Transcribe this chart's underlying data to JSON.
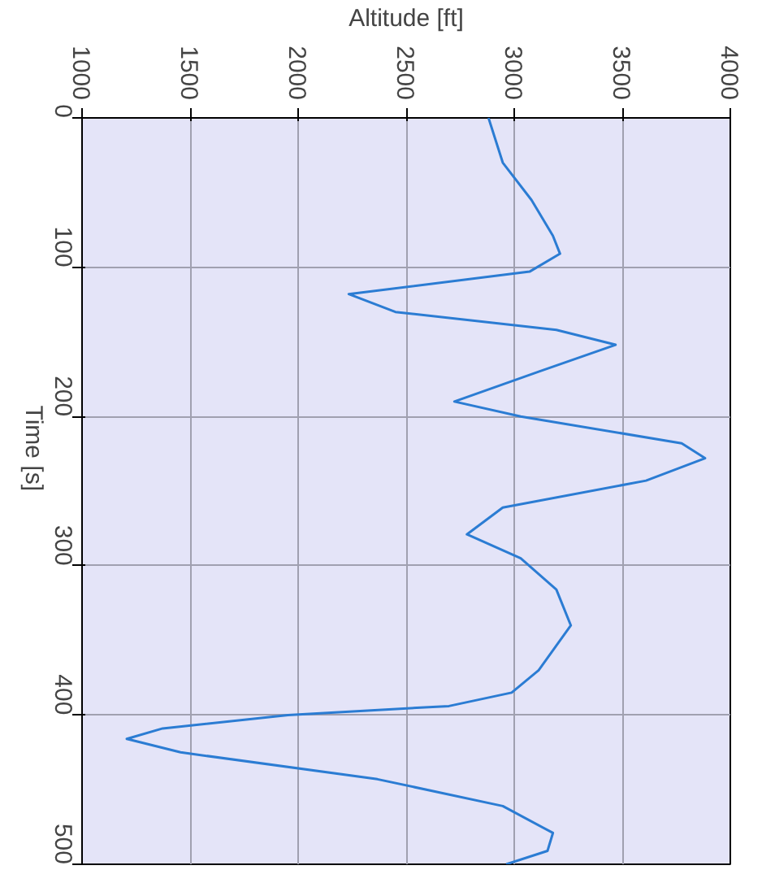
{
  "chart_data": {
    "type": "line",
    "xlabel": "Altitude [ft]",
    "ylabel": "Time [s]",
    "x": [
      2881,
      2947,
      3080,
      3179,
      3212,
      3071,
      2234,
      2450,
      3195,
      3469,
      3113,
      2723,
      3030,
      3775,
      3883,
      3610,
      2947,
      2781,
      3030,
      3195,
      3262,
      3113,
      2988,
      2698,
      1953,
      1373,
      1207,
      1456,
      2367,
      2947,
      3179,
      3154,
      2963
    ],
    "series": [
      {
        "color": "#2b7cd3",
        "values": [
          0,
          30,
          55,
          79,
          91,
          103,
          118,
          130,
          142,
          152,
          170,
          190,
          200,
          218,
          228,
          243,
          261,
          279,
          295,
          316,
          340,
          370,
          385,
          394,
          400,
          409,
          416,
          425,
          443,
          461,
          479,
          491,
          500
        ]
      }
    ],
    "xlim": [
      1000,
      4000
    ],
    "xticks": [
      1000,
      1500,
      2000,
      2500,
      3000,
      3500,
      4000
    ],
    "ylim": [
      500,
      0
    ],
    "yticks": [
      0,
      100,
      200,
      300,
      400,
      500
    ],
    "grid": true
  }
}
